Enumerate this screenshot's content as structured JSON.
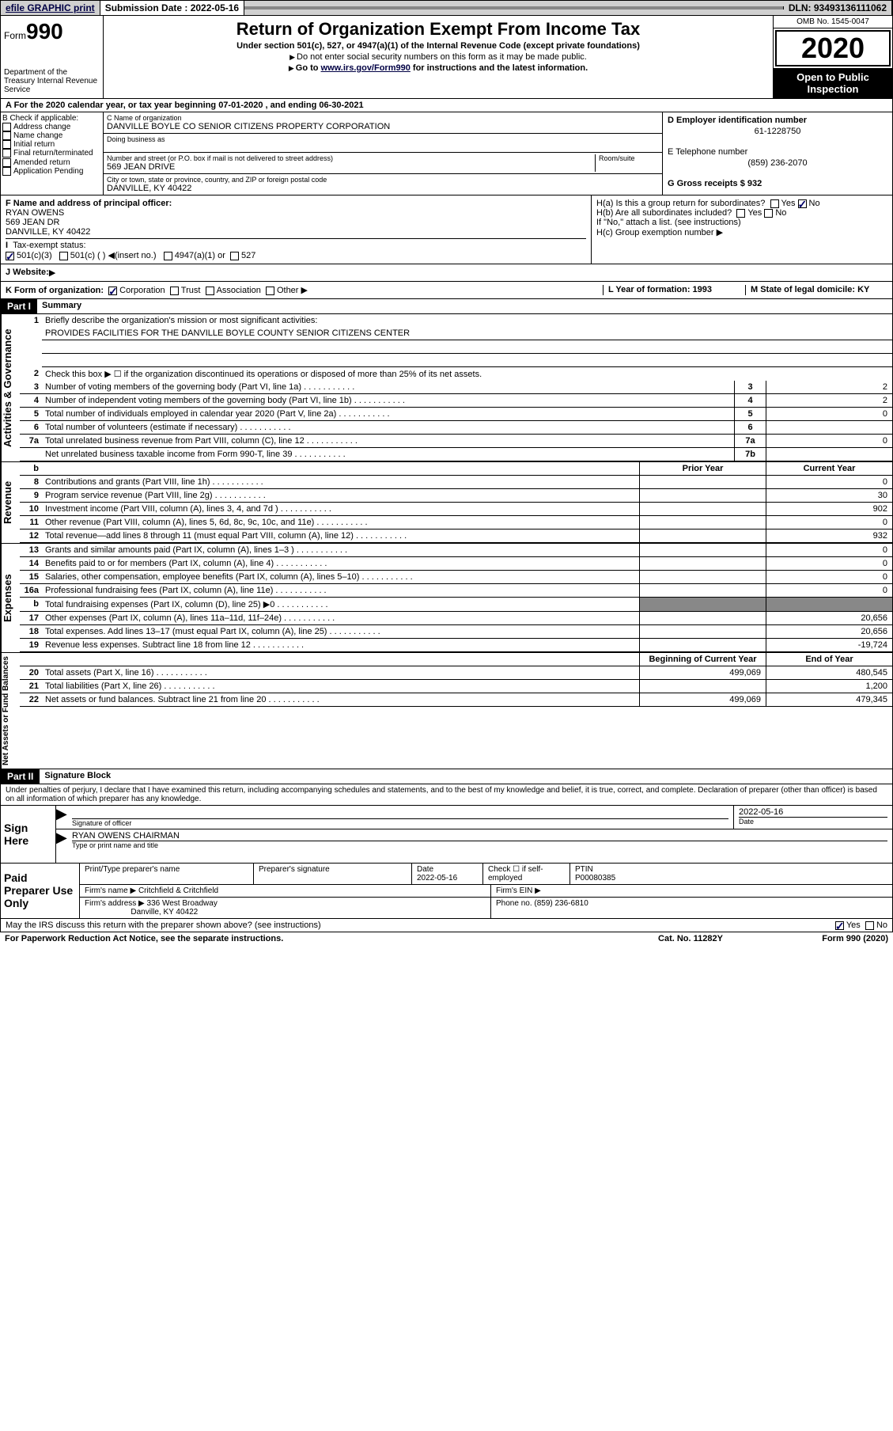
{
  "topbar": {
    "efile": "efile GRAPHIC print",
    "sub_label": "Submission Date : 2022-05-16",
    "dln": "DLN: 93493136111062"
  },
  "header": {
    "form_word": "Form",
    "form_no": "990",
    "dept": "Department of the Treasury\nInternal Revenue Service",
    "title": "Return of Organization Exempt From Income Tax",
    "sub1": "Under section 501(c), 527, or 4947(a)(1) of the Internal Revenue Code (except private foundations)",
    "sub2": "Do not enter social security numbers on this form as it may be made public.",
    "sub3_pre": "Go to ",
    "sub3_link": "www.irs.gov/Form990",
    "sub3_post": " for instructions and the latest information.",
    "omb": "OMB No. 1545-0047",
    "year": "2020",
    "open": "Open to Public Inspection"
  },
  "period": "A  For the 2020 calendar year, or tax year beginning 07-01-2020    , and ending 06-30-2021",
  "colB": {
    "label": "B Check if applicable:",
    "items": [
      "Address change",
      "Name change",
      "Initial return",
      "Final return/terminated",
      "Amended return",
      "Application Pending"
    ]
  },
  "colC": {
    "name_lbl": "C Name of organization",
    "name": "DANVILLE BOYLE CO SENIOR CITIZENS PROPERTY CORPORATION",
    "dba": "Doing business as",
    "street_lbl": "Number and street (or P.O. box if mail is not delivered to street address)",
    "room_lbl": "Room/suite",
    "street": "569 JEAN DRIVE",
    "city_lbl": "City or town, state or province, country, and ZIP or foreign postal code",
    "city": "DANVILLE, KY  40422"
  },
  "colD": {
    "ein_lbl": "D Employer identification number",
    "ein": "61-1228750",
    "phone_lbl": "E Telephone number",
    "phone": "(859) 236-2070",
    "gross_lbl": "G Gross receipts $ 932"
  },
  "fgh": {
    "f_lbl": "F Name and address of principal officer:",
    "f_name": "RYAN OWENS",
    "f_addr1": "569 JEAN DR",
    "f_addr2": "DANVILLE, KY  40422",
    "tax_lbl": "Tax-exempt status:",
    "t1": "501(c)(3)",
    "t2": "501(c) (  )",
    "t2b": "(insert no.)",
    "t3": "4947(a)(1) or",
    "t4": "527",
    "website_lbl": "J   Website:",
    "ha": "H(a)  Is this a group return for subordinates?",
    "hb": "H(b)  Are all subordinates included?",
    "hb2": "If \"No,\" attach a list. (see instructions)",
    "hc": "H(c)  Group exemption number",
    "yes": "Yes",
    "no": "No"
  },
  "rowK": {
    "k": "K Form of organization:",
    "corp": "Corporation",
    "trust": "Trust",
    "assoc": "Association",
    "other": "Other",
    "l": "L Year of formation: 1993",
    "m": "M State of legal domicile: KY"
  },
  "part1": {
    "hdr": "Part I",
    "title": "Summary",
    "q1": "Briefly describe the organization's mission or most significant activities:",
    "q1v": "PROVIDES FACILITIES FOR THE DANVILLE BOYLE COUNTY SENIOR CITIZENS CENTER",
    "q2": "Check this box ▶ ☐  if the organization discontinued its operations or disposed of more than 25% of its net assets.",
    "lines_ag": [
      {
        "n": "3",
        "d": "Number of voting members of the governing body (Part VI, line 1a)",
        "box": "3",
        "v": "2"
      },
      {
        "n": "4",
        "d": "Number of independent voting members of the governing body (Part VI, line 1b)",
        "box": "4",
        "v": "2"
      },
      {
        "n": "5",
        "d": "Total number of individuals employed in calendar year 2020 (Part V, line 2a)",
        "box": "5",
        "v": "0"
      },
      {
        "n": "6",
        "d": "Total number of volunteers (estimate if necessary)",
        "box": "6",
        "v": ""
      },
      {
        "n": "7a",
        "d": "Total unrelated business revenue from Part VIII, column (C), line 12",
        "box": "7a",
        "v": "0"
      },
      {
        "n": "",
        "d": "Net unrelated business taxable income from Form 990-T, line 39",
        "box": "7b",
        "v": ""
      }
    ],
    "col_prior": "Prior Year",
    "col_curr": "Current Year",
    "rev": [
      {
        "n": "8",
        "d": "Contributions and grants (Part VIII, line 1h)",
        "p": "",
        "c": "0"
      },
      {
        "n": "9",
        "d": "Program service revenue (Part VIII, line 2g)",
        "p": "",
        "c": "30"
      },
      {
        "n": "10",
        "d": "Investment income (Part VIII, column (A), lines 3, 4, and 7d )",
        "p": "",
        "c": "902"
      },
      {
        "n": "11",
        "d": "Other revenue (Part VIII, column (A), lines 5, 6d, 8c, 9c, 10c, and 11e)",
        "p": "",
        "c": "0"
      },
      {
        "n": "12",
        "d": "Total revenue—add lines 8 through 11 (must equal Part VIII, column (A), line 12)",
        "p": "",
        "c": "932"
      }
    ],
    "exp": [
      {
        "n": "13",
        "d": "Grants and similar amounts paid (Part IX, column (A), lines 1–3 )",
        "p": "",
        "c": "0"
      },
      {
        "n": "14",
        "d": "Benefits paid to or for members (Part IX, column (A), line 4)",
        "p": "",
        "c": "0"
      },
      {
        "n": "15",
        "d": "Salaries, other compensation, employee benefits (Part IX, column (A), lines 5–10)",
        "p": "",
        "c": "0"
      },
      {
        "n": "16a",
        "d": "Professional fundraising fees (Part IX, column (A), line 11e)",
        "p": "",
        "c": "0"
      },
      {
        "n": "b",
        "d": "Total fundraising expenses (Part IX, column (D), line 25) ▶0",
        "p": "GRAY",
        "c": "GRAY"
      },
      {
        "n": "17",
        "d": "Other expenses (Part IX, column (A), lines 11a–11d, 11f–24e)",
        "p": "",
        "c": "20,656"
      },
      {
        "n": "18",
        "d": "Total expenses. Add lines 13–17 (must equal Part IX, column (A), line 25)",
        "p": "",
        "c": "20,656"
      },
      {
        "n": "19",
        "d": "Revenue less expenses. Subtract line 18 from line 12",
        "p": "",
        "c": "-19,724"
      }
    ],
    "col_begin": "Beginning of Current Year",
    "col_end": "End of Year",
    "na": [
      {
        "n": "20",
        "d": "Total assets (Part X, line 16)",
        "p": "499,069",
        "c": "480,545"
      },
      {
        "n": "21",
        "d": "Total liabilities (Part X, line 26)",
        "p": "",
        "c": "1,200"
      },
      {
        "n": "22",
        "d": "Net assets or fund balances. Subtract line 21 from line 20",
        "p": "499,069",
        "c": "479,345"
      }
    ],
    "vlab_ag": "Activities & Governance",
    "vlab_rev": "Revenue",
    "vlab_exp": "Expenses",
    "vlab_na": "Net Assets or Fund Balances"
  },
  "part2": {
    "hdr": "Part II",
    "title": "Signature Block",
    "decl": "Under penalties of perjury, I declare that I have examined this return, including accompanying schedules and statements, and to the best of my knowledge and belief, it is true, correct, and complete. Declaration of preparer (other than officer) is based on all information of which preparer has any knowledge."
  },
  "sign": {
    "lbl": "Sign Here",
    "sig_lbl": "Signature of officer",
    "date_lbl": "Date",
    "date": "2022-05-16",
    "name": "RYAN OWENS CHAIRMAN",
    "name_lbl": "Type or print name and title"
  },
  "prep": {
    "lbl": "Paid Preparer Use Only",
    "h1": "Print/Type preparer's name",
    "h2": "Preparer's signature",
    "h3": "Date",
    "h3v": "2022-05-16",
    "h4": "Check ☐ if self-employed",
    "h5": "PTIN",
    "h5v": "P00080385",
    "firm_lbl": "Firm's name     ▶",
    "firm": "Critchfield & Critchfield",
    "ein_lbl": "Firm's EIN ▶",
    "addr_lbl": "Firm's address ▶",
    "addr1": "336 West Broadway",
    "addr2": "Danville, KY  40422",
    "ph_lbl": "Phone no. (859) 236-6810"
  },
  "footer": {
    "discuss": "May the IRS discuss this return with the preparer shown above? (see instructions)",
    "yes": "Yes",
    "no": "No",
    "pra": "For Paperwork Reduction Act Notice, see the separate instructions.",
    "cat": "Cat. No. 11282Y",
    "form": "Form 990 (2020)"
  }
}
